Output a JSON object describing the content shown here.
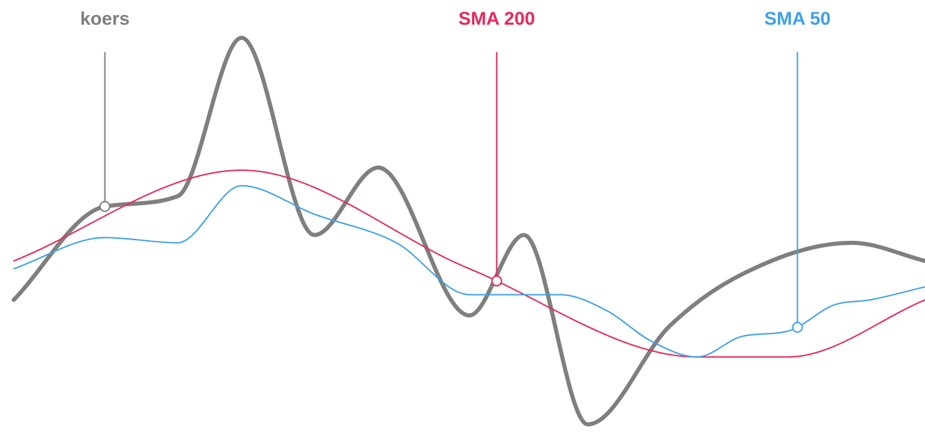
{
  "chart_data": {
    "type": "line",
    "title": "",
    "xlabel": "",
    "ylabel": "",
    "grid": false,
    "legend": "none",
    "series": [
      {
        "key": "koers",
        "name": "koers",
        "color": "#7f7f7f",
        "emphasis": "thick",
        "x": [
          0,
          10,
          18,
          25,
          33,
          40,
          50,
          56,
          63,
          72,
          80,
          92,
          100
        ],
        "y": [
          -0.1,
          0.26,
          0.3,
          0.91,
          0.15,
          0.41,
          -0.16,
          0.15,
          -0.58,
          -0.2,
          0.0,
          0.12,
          0.05
        ],
        "label": "koers"
      },
      {
        "key": "sma200",
        "name": "SMA 200",
        "color": "#e8275e",
        "emphasis": "thin",
        "x": [
          0,
          25,
          50,
          75,
          85,
          100
        ],
        "y": [
          0.05,
          0.4,
          0.02,
          -0.32,
          -0.32,
          -0.1
        ],
        "label": "SMA 200"
      },
      {
        "key": "sma50",
        "name": "SMA 50",
        "color": "#3da1e6",
        "emphasis": "thin",
        "x": [
          0,
          10,
          18,
          25,
          33,
          42,
          50,
          60,
          65,
          70,
          75,
          80,
          85,
          90,
          94,
          100
        ],
        "y": [
          0.02,
          0.14,
          0.12,
          0.34,
          0.23,
          0.12,
          -0.08,
          -0.08,
          -0.14,
          -0.26,
          -0.32,
          -0.24,
          -0.22,
          -0.12,
          -0.1,
          -0.05
        ],
        "label": "SMA 50"
      }
    ],
    "callouts": [
      {
        "series": "koers",
        "x": 10
      },
      {
        "series": "sma200",
        "x": 53
      },
      {
        "series": "sma50",
        "x": 86
      }
    ],
    "xlim": [
      0,
      100
    ],
    "ylim": [
      -0.65,
      0.95
    ]
  }
}
